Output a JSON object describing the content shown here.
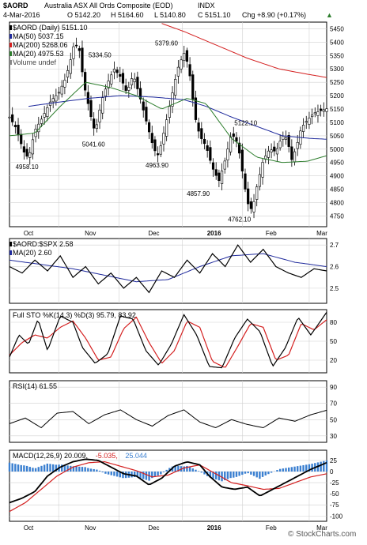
{
  "header": {
    "ticker": "$AORD",
    "name": "Australia ASX All Ords Composite (EOD)",
    "exchange": "INDX",
    "date": "4-Mar-2016",
    "open": "O 5142.20",
    "high": "H 5164.60",
    "low": "L 5140.80",
    "close": "C 5151.10",
    "change": "Chg +8.90 (+0.17%)",
    "change_arrow": "▲",
    "watermark": "© StockCharts.com"
  },
  "colors": {
    "ma50": "#1f2a9c",
    "ma200": "#d42020",
    "ma20": "#2d7d2d",
    "pct_d": "#d42020",
    "macd_signal": "#d42020",
    "histogram": "#3a7fd0",
    "grid": "#d0d0d0",
    "price": "#000000"
  },
  "chart_data": [
    {
      "type": "candlestick",
      "panel": "price",
      "legend": [
        {
          "label": "$AORD (Daily) 5151.10",
          "color": "#000000"
        },
        {
          "label": "MA(50) 5037.15",
          "color": "#1f2a9c"
        },
        {
          "label": "MA(200) 5268.06",
          "color": "#d42020"
        },
        {
          "label": "MA(20) 4975.53",
          "color": "#2d7d2d"
        },
        {
          "label": "Volume undef",
          "color": "#888888"
        }
      ],
      "x_labels": [
        "Oct",
        "Nov",
        "Dec",
        "2016",
        "Feb",
        "Mar"
      ],
      "y_ticks": [
        4750,
        4800,
        4850,
        4900,
        4950,
        5000,
        5050,
        5100,
        5150,
        5200,
        5250,
        5300,
        5350,
        5400,
        5450
      ],
      "ylim": [
        4710,
        5475
      ],
      "annotations": [
        {
          "text": "5379.60",
          "x": 0.495,
          "y": 5379.6
        },
        {
          "text": "5334.50",
          "x": 0.285,
          "y": 5334.5
        },
        {
          "text": "5122.10",
          "x": 0.745,
          "y": 5122.1
        },
        {
          "text": "5041.60",
          "x": 0.265,
          "y": 5041.6
        },
        {
          "text": "4958.10",
          "x": 0.055,
          "y": 4958.1
        },
        {
          "text": "4963.90",
          "x": 0.465,
          "y": 4963.9
        },
        {
          "text": "4857.90",
          "x": 0.595,
          "y": 4857.9
        },
        {
          "text": "4762.10",
          "x": 0.725,
          "y": 4762.1
        }
      ],
      "close_anchors": [
        [
          0,
          5120
        ],
        [
          0.02,
          5080
        ],
        [
          0.045,
          4990
        ],
        [
          0.06,
          4965
        ],
        [
          0.08,
          5070
        ],
        [
          0.1,
          5110
        ],
        [
          0.13,
          5180
        ],
        [
          0.155,
          5210
        ],
        [
          0.175,
          5260
        ],
        [
          0.19,
          5320
        ],
        [
          0.205,
          5400
        ],
        [
          0.22,
          5370
        ],
        [
          0.235,
          5240
        ],
        [
          0.255,
          5130
        ],
        [
          0.27,
          5060
        ],
        [
          0.29,
          5180
        ],
        [
          0.31,
          5250
        ],
        [
          0.33,
          5300
        ],
        [
          0.35,
          5270
        ],
        [
          0.37,
          5210
        ],
        [
          0.39,
          5280
        ],
        [
          0.41,
          5200
        ],
        [
          0.43,
          5110
        ],
        [
          0.455,
          5000
        ],
        [
          0.47,
          4975
        ],
        [
          0.49,
          5080
        ],
        [
          0.51,
          5190
        ],
        [
          0.53,
          5300
        ],
        [
          0.55,
          5360
        ],
        [
          0.565,
          5310
        ],
        [
          0.585,
          5120
        ],
        [
          0.6,
          5050
        ],
        [
          0.62,
          5010
        ],
        [
          0.64,
          4930
        ],
        [
          0.66,
          4880
        ],
        [
          0.68,
          4960
        ],
        [
          0.7,
          5060
        ],
        [
          0.72,
          5020
        ],
        [
          0.735,
          4910
        ],
        [
          0.75,
          4800
        ],
        [
          0.765,
          4770
        ],
        [
          0.78,
          4860
        ],
        [
          0.8,
          4960
        ],
        [
          0.82,
          5000
        ],
        [
          0.84,
          4990
        ],
        [
          0.86,
          5050
        ],
        [
          0.875,
          5040
        ],
        [
          0.89,
          4960
        ],
        [
          0.905,
          5010
        ],
        [
          0.92,
          5080
        ],
        [
          0.94,
          5110
        ],
        [
          0.96,
          5135
        ],
        [
          1.0,
          5151.1
        ]
      ],
      "ma50_anchors": [
        [
          0.06,
          5160
        ],
        [
          0.15,
          5175
        ],
        [
          0.25,
          5190
        ],
        [
          0.35,
          5200
        ],
        [
          0.45,
          5195
        ],
        [
          0.55,
          5185
        ],
        [
          0.62,
          5160
        ],
        [
          0.7,
          5120
        ],
        [
          0.78,
          5085
        ],
        [
          0.86,
          5050
        ],
        [
          0.95,
          5040
        ],
        [
          1.0,
          5037.15
        ]
      ],
      "ma200_anchors": [
        [
          0.48,
          5470
        ],
        [
          0.55,
          5440
        ],
        [
          0.65,
          5390
        ],
        [
          0.75,
          5340
        ],
        [
          0.85,
          5300
        ],
        [
          0.95,
          5278
        ],
        [
          1.0,
          5268.06
        ]
      ],
      "ma20_anchors": [
        [
          0.0,
          5050
        ],
        [
          0.08,
          5060
        ],
        [
          0.16,
          5160
        ],
        [
          0.24,
          5250
        ],
        [
          0.32,
          5230
        ],
        [
          0.4,
          5200
        ],
        [
          0.48,
          5150
        ],
        [
          0.56,
          5190
        ],
        [
          0.62,
          5170
        ],
        [
          0.7,
          5040
        ],
        [
          0.78,
          4970
        ],
        [
          0.86,
          4950
        ],
        [
          0.94,
          4955
        ],
        [
          1.0,
          4975.53
        ]
      ]
    },
    {
      "type": "line",
      "panel": "ratio",
      "legend": [
        {
          "label": "$AORD:$SPX 2.58",
          "color": "#000000"
        },
        {
          "label": "MA(20) 2.60",
          "color": "#1f2a9c"
        }
      ],
      "y_ticks": [
        2.5,
        2.6,
        2.7
      ],
      "ylim": [
        2.43,
        2.73
      ],
      "line_anchors": [
        [
          0,
          2.6
        ],
        [
          0.04,
          2.57
        ],
        [
          0.08,
          2.63
        ],
        [
          0.12,
          2.58
        ],
        [
          0.16,
          2.65
        ],
        [
          0.2,
          2.55
        ],
        [
          0.24,
          2.6
        ],
        [
          0.28,
          2.52
        ],
        [
          0.32,
          2.57
        ],
        [
          0.36,
          2.5
        ],
        [
          0.4,
          2.55
        ],
        [
          0.44,
          2.48
        ],
        [
          0.48,
          2.58
        ],
        [
          0.52,
          2.55
        ],
        [
          0.56,
          2.63
        ],
        [
          0.6,
          2.57
        ],
        [
          0.64,
          2.66
        ],
        [
          0.68,
          2.6
        ],
        [
          0.72,
          2.7
        ],
        [
          0.76,
          2.62
        ],
        [
          0.8,
          2.68
        ],
        [
          0.84,
          2.6
        ],
        [
          0.88,
          2.57
        ],
        [
          0.92,
          2.55
        ],
        [
          0.96,
          2.59
        ],
        [
          1.0,
          2.58
        ]
      ],
      "ma_anchors": [
        [
          0,
          2.63
        ],
        [
          0.1,
          2.61
        ],
        [
          0.2,
          2.59
        ],
        [
          0.3,
          2.56
        ],
        [
          0.4,
          2.53
        ],
        [
          0.5,
          2.54
        ],
        [
          0.6,
          2.6
        ],
        [
          0.7,
          2.65
        ],
        [
          0.8,
          2.66
        ],
        [
          0.9,
          2.62
        ],
        [
          1.0,
          2.6
        ]
      ]
    },
    {
      "type": "line",
      "panel": "stochastic",
      "legend": [
        {
          "label": "Full STO %K(14,3) %D(3) 95.79, 83.92",
          "color": "#000000"
        }
      ],
      "y_ticks": [
        20,
        50,
        80
      ],
      "ylim": [
        0,
        100
      ],
      "k_anchors": [
        [
          0,
          25
        ],
        [
          0.03,
          60
        ],
        [
          0.06,
          45
        ],
        [
          0.09,
          85
        ],
        [
          0.12,
          35
        ],
        [
          0.16,
          90
        ],
        [
          0.2,
          80
        ],
        [
          0.23,
          40
        ],
        [
          0.27,
          15
        ],
        [
          0.31,
          30
        ],
        [
          0.35,
          90
        ],
        [
          0.39,
          85
        ],
        [
          0.43,
          35
        ],
        [
          0.47,
          12
        ],
        [
          0.51,
          45
        ],
        [
          0.55,
          92
        ],
        [
          0.59,
          60
        ],
        [
          0.63,
          10
        ],
        [
          0.67,
          8
        ],
        [
          0.71,
          55
        ],
        [
          0.75,
          85
        ],
        [
          0.79,
          65
        ],
        [
          0.83,
          10
        ],
        [
          0.87,
          40
        ],
        [
          0.91,
          88
        ],
        [
          0.95,
          60
        ],
        [
          1.0,
          95.79
        ]
      ],
      "d_anchors": [
        [
          0,
          28
        ],
        [
          0.04,
          48
        ],
        [
          0.08,
          60
        ],
        [
          0.12,
          55
        ],
        [
          0.16,
          72
        ],
        [
          0.2,
          82
        ],
        [
          0.24,
          55
        ],
        [
          0.28,
          20
        ],
        [
          0.32,
          25
        ],
        [
          0.36,
          70
        ],
        [
          0.4,
          88
        ],
        [
          0.44,
          48
        ],
        [
          0.48,
          15
        ],
        [
          0.52,
          35
        ],
        [
          0.56,
          82
        ],
        [
          0.6,
          72
        ],
        [
          0.64,
          18
        ],
        [
          0.68,
          8
        ],
        [
          0.72,
          42
        ],
        [
          0.76,
          78
        ],
        [
          0.8,
          72
        ],
        [
          0.84,
          20
        ],
        [
          0.88,
          28
        ],
        [
          0.92,
          78
        ],
        [
          0.96,
          68
        ],
        [
          1.0,
          83.92
        ]
      ]
    },
    {
      "type": "line",
      "panel": "rsi",
      "legend": [
        {
          "label": "RSI(14) 61.55",
          "color": "#000000"
        }
      ],
      "y_ticks": [
        30,
        50,
        70,
        90
      ],
      "ylim": [
        22,
        98
      ],
      "anchors": [
        [
          0,
          45
        ],
        [
          0.05,
          52
        ],
        [
          0.1,
          40
        ],
        [
          0.15,
          58
        ],
        [
          0.2,
          60
        ],
        [
          0.25,
          45
        ],
        [
          0.3,
          56
        ],
        [
          0.35,
          62
        ],
        [
          0.4,
          50
        ],
        [
          0.45,
          42
        ],
        [
          0.5,
          55
        ],
        [
          0.55,
          62
        ],
        [
          0.6,
          47
        ],
        [
          0.65,
          40
        ],
        [
          0.7,
          50
        ],
        [
          0.75,
          44
        ],
        [
          0.8,
          40
        ],
        [
          0.85,
          52
        ],
        [
          0.9,
          48
        ],
        [
          0.95,
          56
        ],
        [
          1.0,
          61.55
        ]
      ]
    },
    {
      "type": "line",
      "panel": "macd",
      "legend": [
        {
          "label": "MACD(12,26,9) 20.009,",
          "color": "#000000"
        },
        {
          "label": "-5.035,",
          "color": "#d42020"
        },
        {
          "label": "25.044",
          "color": "#3a7fd0"
        }
      ],
      "y_ticks": [
        -100,
        -75,
        -50,
        -25,
        0,
        25
      ],
      "ylim": [
        -112,
        48
      ],
      "macd_anchors": [
        [
          0,
          -70
        ],
        [
          0.04,
          -60
        ],
        [
          0.08,
          -45
        ],
        [
          0.12,
          -10
        ],
        [
          0.16,
          10
        ],
        [
          0.2,
          22
        ],
        [
          0.24,
          28
        ],
        [
          0.28,
          25
        ],
        [
          0.32,
          10
        ],
        [
          0.36,
          -5
        ],
        [
          0.4,
          -10
        ],
        [
          0.44,
          -30
        ],
        [
          0.48,
          -15
        ],
        [
          0.52,
          12
        ],
        [
          0.56,
          22
        ],
        [
          0.6,
          15
        ],
        [
          0.63,
          -10
        ],
        [
          0.67,
          -35
        ],
        [
          0.71,
          -40
        ],
        [
          0.75,
          -35
        ],
        [
          0.79,
          -55
        ],
        [
          0.83,
          -40
        ],
        [
          0.87,
          -25
        ],
        [
          0.91,
          -10
        ],
        [
          0.95,
          5
        ],
        [
          1.0,
          20.009
        ]
      ],
      "signal_anchors": [
        [
          0,
          -90
        ],
        [
          0.05,
          -70
        ],
        [
          0.1,
          -40
        ],
        [
          0.15,
          -10
        ],
        [
          0.2,
          10
        ],
        [
          0.25,
          20
        ],
        [
          0.3,
          22
        ],
        [
          0.35,
          12
        ],
        [
          0.4,
          2
        ],
        [
          0.45,
          -12
        ],
        [
          0.5,
          -8
        ],
        [
          0.55,
          8
        ],
        [
          0.6,
          15
        ],
        [
          0.65,
          -5
        ],
        [
          0.7,
          -25
        ],
        [
          0.75,
          -32
        ],
        [
          0.8,
          -40
        ],
        [
          0.85,
          -38
        ],
        [
          0.9,
          -25
        ],
        [
          0.95,
          -12
        ],
        [
          1.0,
          -5.035
        ]
      ]
    }
  ]
}
